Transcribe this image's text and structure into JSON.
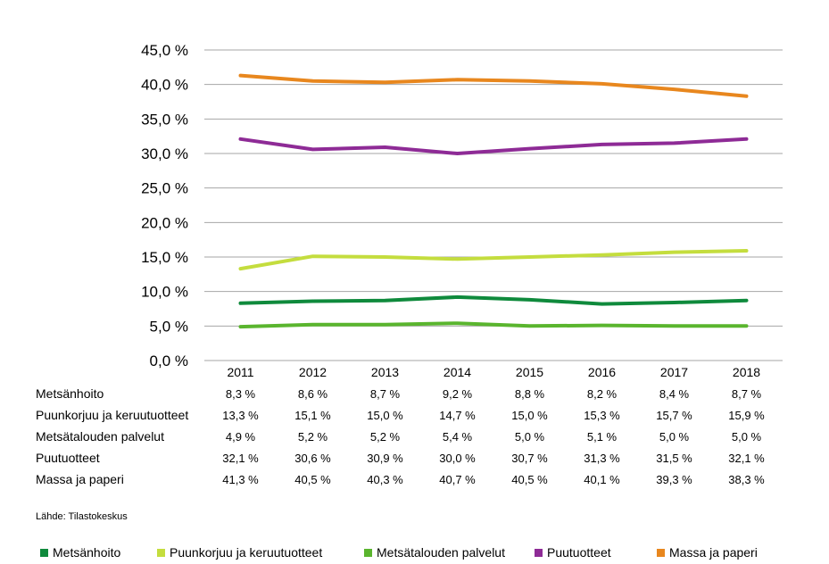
{
  "chart_data": {
    "type": "line",
    "categories": [
      "2011",
      "2012",
      "2013",
      "2014",
      "2015",
      "2016",
      "2017",
      "2018"
    ],
    "y_ticks": [
      "0,0 %",
      "5,0 %",
      "10,0 %",
      "15,0 %",
      "20,0 %",
      "25,0 %",
      "30,0 %",
      "35,0 %",
      "40,0 %",
      "45,0 %"
    ],
    "ylim": [
      0,
      45
    ],
    "grid": true,
    "legend_position": "bottom",
    "series": [
      {
        "name": "Metsänhoito",
        "color": "#0f8a3c",
        "values": [
          8.3,
          8.6,
          8.7,
          9.2,
          8.8,
          8.2,
          8.4,
          8.7
        ],
        "labels": [
          "8,3 %",
          "8,6 %",
          "8,7 %",
          "9,2 %",
          "8,8 %",
          "8,2 %",
          "8,4 %",
          "8,7 %"
        ]
      },
      {
        "name": "Puunkorjuu ja keruutuotteet",
        "color": "#c4dd3e",
        "values": [
          13.3,
          15.1,
          15.0,
          14.7,
          15.0,
          15.3,
          15.7,
          15.9
        ],
        "labels": [
          "13,3 %",
          "15,1 %",
          "15,0 %",
          "14,7 %",
          "15,0 %",
          "15,3 %",
          "15,7 %",
          "15,9 %"
        ]
      },
      {
        "name": "Metsätalouden palvelut",
        "color": "#5ab52e",
        "values": [
          4.9,
          5.2,
          5.2,
          5.4,
          5.0,
          5.1,
          5.0,
          5.0
        ],
        "labels": [
          "4,9 %",
          "5,2 %",
          "5,2 %",
          "5,4 %",
          "5,0 %",
          "5,1 %",
          "5,0 %",
          "5,0 %"
        ]
      },
      {
        "name": "Puutuotteet",
        "color": "#8e2b96",
        "values": [
          32.1,
          30.6,
          30.9,
          30.0,
          30.7,
          31.3,
          31.5,
          32.1
        ],
        "labels": [
          "32,1 %",
          "30,6 %",
          "30,9 %",
          "30,0 %",
          "30,7 %",
          "31,3 %",
          "31,5 %",
          "32,1 %"
        ]
      },
      {
        "name": "Massa ja paperi",
        "color": "#e8871e",
        "values": [
          41.3,
          40.5,
          40.3,
          40.7,
          40.5,
          40.1,
          39.3,
          38.3
        ],
        "labels": [
          "41,3 %",
          "40,5 %",
          "40,3 %",
          "40,7 %",
          "40,5 %",
          "40,1 %",
          "39,3 %",
          "38,3 %"
        ]
      }
    ]
  },
  "source": "Lähde: Tilastokeskus"
}
